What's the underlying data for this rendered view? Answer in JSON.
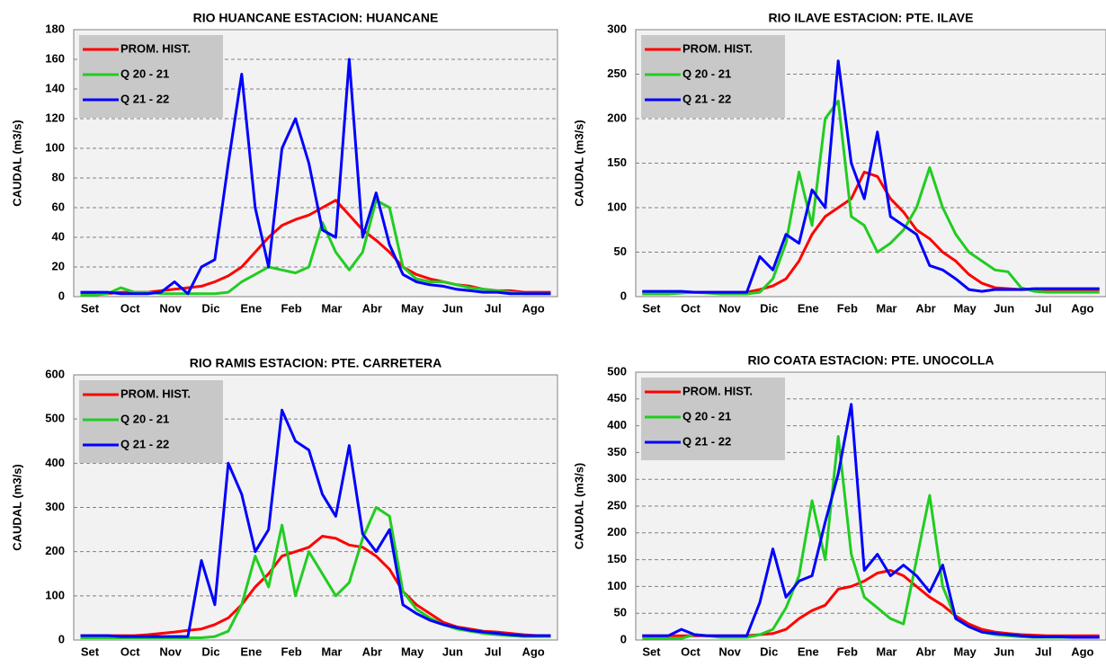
{
  "chart_data": [
    {
      "type": "line",
      "title": "RIO HUANCANE ESTACION: HUANCANE",
      "y_label": "CAUDAL (m3/s)",
      "categories": [
        null,
        "Set",
        null,
        null,
        "Oct",
        null,
        null,
        "Nov",
        null,
        null,
        "Dic",
        null,
        null,
        "Ene",
        null,
        null,
        "Feb",
        null,
        null,
        "Mar",
        null,
        null,
        "Abr",
        null,
        null,
        "May",
        null,
        null,
        "Jun",
        null,
        null,
        "Jul",
        null,
        null,
        "Ago",
        null
      ],
      "ylim": [
        0,
        180
      ],
      "yticks": [
        0,
        20,
        40,
        60,
        80,
        100,
        120,
        140,
        160,
        180
      ],
      "grid": true,
      "series": [
        {
          "name": "PROM. HIST.",
          "color": "#ff0000",
          "values": [
            2,
            2,
            2,
            3,
            3,
            3,
            4,
            5,
            6,
            7,
            10,
            14,
            20,
            30,
            40,
            48,
            52,
            55,
            60,
            65,
            55,
            45,
            38,
            30,
            20,
            15,
            12,
            10,
            8,
            7,
            5,
            4,
            4,
            3,
            3,
            3
          ]
        },
        {
          "name": "Q 20 - 21",
          "color": "#22cc22",
          "values": [
            1,
            1,
            2,
            6,
            3,
            3,
            2,
            2,
            2,
            2,
            2,
            3,
            10,
            15,
            20,
            18,
            16,
            20,
            50,
            30,
            18,
            30,
            65,
            60,
            20,
            12,
            10,
            10,
            8,
            6,
            5,
            4,
            3,
            2,
            2,
            2
          ]
        },
        {
          "name": "Q 21 - 22",
          "color": "#0000ff",
          "values": [
            3,
            3,
            3,
            2,
            2,
            2,
            3,
            10,
            2,
            20,
            25,
            90,
            150,
            60,
            20,
            100,
            120,
            90,
            45,
            40,
            160,
            40,
            70,
            35,
            15,
            10,
            8,
            7,
            5,
            4,
            3,
            3,
            2,
            2,
            2,
            2
          ]
        }
      ]
    },
    {
      "type": "line",
      "title": "RIO ILAVE ESTACION: PTE. ILAVE",
      "y_label": "CAUDAL (m3/s)",
      "categories": [
        null,
        "Set",
        null,
        null,
        "Oct",
        null,
        null,
        "Nov",
        null,
        null,
        "Dic",
        null,
        null,
        "Ene",
        null,
        null,
        "Feb",
        null,
        null,
        "Mar",
        null,
        null,
        "Abr",
        null,
        null,
        "May",
        null,
        null,
        "Jun",
        null,
        null,
        "Jul",
        null,
        null,
        "Ago",
        null
      ],
      "ylim": [
        0,
        300
      ],
      "yticks": [
        0,
        50,
        100,
        150,
        200,
        250,
        300
      ],
      "grid": true,
      "series": [
        {
          "name": "PROM. HIST.",
          "color": "#ff0000",
          "values": [
            5,
            5,
            5,
            5,
            5,
            5,
            5,
            5,
            5,
            8,
            12,
            20,
            40,
            70,
            90,
            100,
            110,
            140,
            135,
            110,
            95,
            75,
            65,
            50,
            40,
            25,
            15,
            10,
            9,
            8,
            8,
            8,
            8,
            8,
            8,
            8
          ]
        },
        {
          "name": "Q 20 - 21",
          "color": "#22cc22",
          "values": [
            3,
            3,
            3,
            4,
            5,
            4,
            3,
            3,
            3,
            5,
            20,
            60,
            140,
            80,
            200,
            220,
            90,
            80,
            50,
            60,
            75,
            100,
            145,
            100,
            70,
            50,
            40,
            30,
            28,
            10,
            6,
            5,
            5,
            5,
            5,
            5
          ]
        },
        {
          "name": "Q 21 - 22",
          "color": "#0000ff",
          "values": [
            6,
            6,
            6,
            6,
            5,
            5,
            5,
            5,
            5,
            45,
            30,
            70,
            60,
            120,
            100,
            265,
            150,
            110,
            185,
            90,
            80,
            70,
            35,
            30,
            20,
            8,
            6,
            8,
            8,
            8,
            9,
            9,
            9,
            9,
            9,
            9
          ]
        }
      ]
    },
    {
      "type": "line",
      "title": "RIO RAMIS ESTACION: PTE. CARRETERA",
      "y_label": "CAUDAL (m3/s)",
      "categories": [
        null,
        "Set",
        null,
        null,
        "Oct",
        null,
        null,
        "Nov",
        null,
        null,
        "Dic",
        null,
        null,
        "Ene",
        null,
        null,
        "Feb",
        null,
        null,
        "Mar",
        null,
        null,
        "Abr",
        null,
        null,
        "May",
        null,
        null,
        "Jun",
        null,
        null,
        "Jul",
        null,
        null,
        "Ago",
        null
      ],
      "ylim": [
        0,
        600
      ],
      "yticks": [
        0,
        100,
        200,
        300,
        400,
        500,
        600
      ],
      "grid": true,
      "series": [
        {
          "name": "PROM. HIST.",
          "color": "#ff0000",
          "values": [
            10,
            10,
            10,
            10,
            10,
            12,
            15,
            18,
            22,
            25,
            35,
            50,
            80,
            120,
            150,
            190,
            200,
            210,
            235,
            230,
            215,
            210,
            190,
            160,
            110,
            80,
            60,
            40,
            30,
            25,
            20,
            18,
            15,
            12,
            10,
            10
          ]
        },
        {
          "name": "Q 20 - 21",
          "color": "#22cc22",
          "values": [
            5,
            5,
            5,
            5,
            5,
            5,
            5,
            5,
            5,
            5,
            8,
            20,
            80,
            190,
            120,
            260,
            100,
            200,
            150,
            100,
            130,
            230,
            300,
            280,
            110,
            70,
            50,
            35,
            25,
            20,
            15,
            12,
            10,
            8,
            8,
            8
          ]
        },
        {
          "name": "Q 21 - 22",
          "color": "#0000ff",
          "values": [
            10,
            10,
            10,
            8,
            8,
            8,
            8,
            8,
            8,
            180,
            80,
            400,
            330,
            200,
            250,
            520,
            450,
            430,
            330,
            280,
            440,
            240,
            200,
            250,
            80,
            60,
            45,
            35,
            28,
            22,
            18,
            15,
            12,
            10,
            10,
            10
          ]
        }
      ]
    },
    {
      "type": "line",
      "title": "RIO COATA ESTACION: PTE. UNOCOLLA",
      "y_label": "CAUDAL (m3/s)",
      "categories": [
        null,
        "Set",
        null,
        null,
        "Oct",
        null,
        null,
        "Nov",
        null,
        null,
        "Dic",
        null,
        null,
        "Ene",
        null,
        null,
        "Feb",
        null,
        null,
        "Mar",
        null,
        null,
        "Abr",
        null,
        null,
        "May",
        null,
        null,
        "Jun",
        null,
        null,
        "Jul",
        null,
        null,
        "Ago",
        null
      ],
      "ylim": [
        0,
        500
      ],
      "yticks": [
        0,
        50,
        100,
        150,
        200,
        250,
        300,
        350,
        400,
        450,
        500
      ],
      "grid": true,
      "series": [
        {
          "name": "PROM. HIST.",
          "color": "#ff0000",
          "values": [
            8,
            8,
            8,
            8,
            8,
            8,
            8,
            8,
            8,
            10,
            12,
            20,
            40,
            55,
            65,
            95,
            100,
            110,
            125,
            130,
            120,
            100,
            80,
            65,
            45,
            30,
            20,
            15,
            12,
            10,
            9,
            8,
            8,
            8,
            8,
            8
          ]
        },
        {
          "name": "Q 20 - 21",
          "color": "#22cc22",
          "values": [
            3,
            3,
            3,
            3,
            10,
            8,
            5,
            5,
            5,
            10,
            20,
            60,
            120,
            260,
            150,
            380,
            160,
            80,
            60,
            40,
            30,
            150,
            270,
            100,
            40,
            25,
            15,
            10,
            8,
            6,
            5,
            5,
            5,
            5,
            5,
            5
          ]
        },
        {
          "name": "Q 21 - 22",
          "color": "#0000ff",
          "values": [
            8,
            8,
            8,
            20,
            10,
            8,
            8,
            8,
            8,
            70,
            170,
            80,
            110,
            120,
            220,
            310,
            440,
            130,
            160,
            120,
            140,
            120,
            90,
            140,
            40,
            25,
            15,
            12,
            10,
            8,
            6,
            6,
            6,
            5,
            5,
            5
          ]
        }
      ]
    }
  ]
}
